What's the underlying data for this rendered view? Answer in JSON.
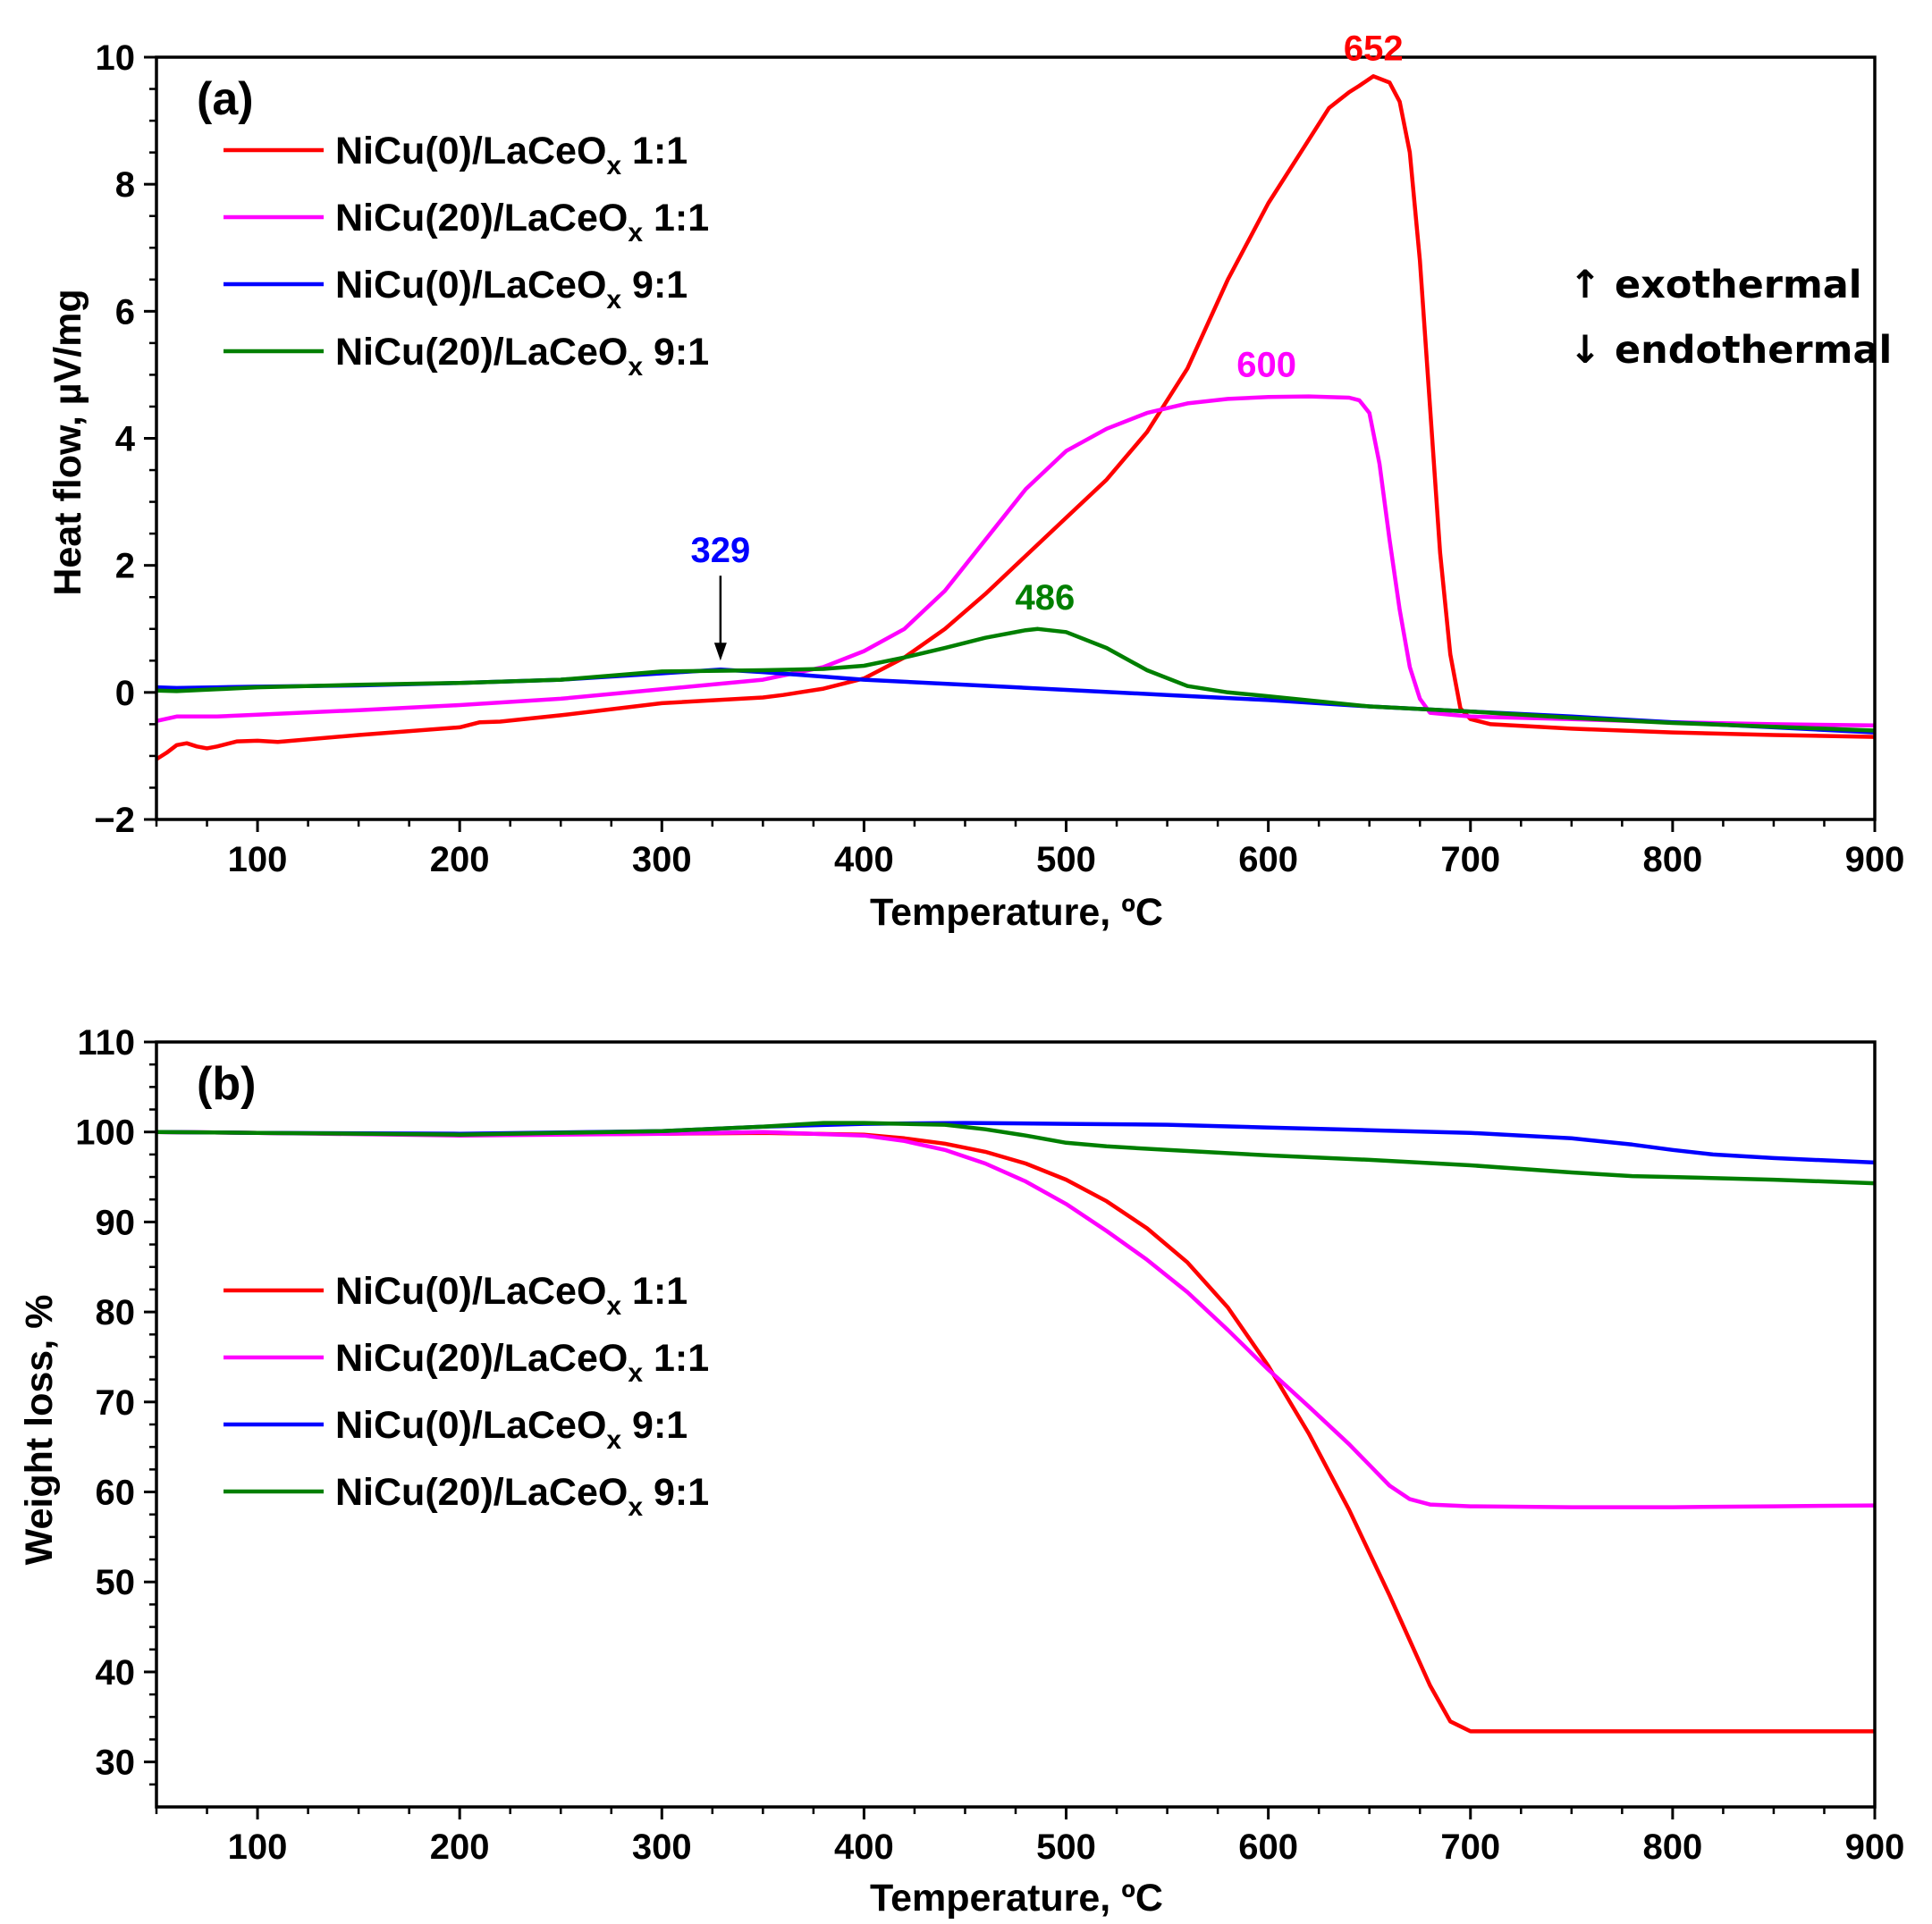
{
  "chart_data": [
    {
      "type": "line",
      "panel_label": "(a)",
      "xlabel": "Temperature, ºC",
      "ylabel": "Heat flow, µV/mg",
      "xlim": [
        50,
        900
      ],
      "ylim": [
        -2,
        10
      ],
      "xticks": [
        100,
        200,
        300,
        400,
        500,
        600,
        700,
        800,
        900
      ],
      "yticks": [
        -2,
        0,
        2,
        4,
        6,
        8,
        10
      ],
      "ytick_labels": [
        "−2",
        "0",
        "2",
        "4",
        "6",
        "8",
        "10"
      ],
      "legend_position": "upper-left",
      "series": [
        {
          "name": "NiCu(0)/LaCeO",
          "sub": "x",
          "suffix": " 1:1",
          "color": "#ff0000",
          "x": [
            50,
            55,
            60,
            65,
            70,
            75,
            80,
            90,
            100,
            110,
            150,
            200,
            210,
            220,
            250,
            300,
            350,
            360,
            380,
            400,
            420,
            440,
            460,
            480,
            500,
            520,
            540,
            560,
            580,
            600,
            620,
            630,
            640,
            645,
            652,
            660,
            665,
            670,
            675,
            680,
            685,
            690,
            695,
            700,
            710,
            750,
            800,
            850,
            900
          ],
          "y": [
            -1.05,
            -0.95,
            -0.83,
            -0.8,
            -0.85,
            -0.88,
            -0.85,
            -0.77,
            -0.76,
            -0.78,
            -0.67,
            -0.55,
            -0.47,
            -0.46,
            -0.36,
            -0.17,
            -0.08,
            -0.04,
            0.06,
            0.22,
            0.55,
            1.0,
            1.55,
            2.15,
            2.75,
            3.35,
            4.1,
            5.1,
            6.5,
            7.7,
            8.7,
            9.2,
            9.45,
            9.55,
            9.7,
            9.6,
            9.3,
            8.5,
            6.8,
            4.5,
            2.2,
            0.6,
            -0.25,
            -0.42,
            -0.5,
            -0.57,
            -0.63,
            -0.67,
            -0.7
          ]
        },
        {
          "name": "NiCu(20)/LaCeO",
          "sub": "x",
          "suffix": " 1:1",
          "color": "#ff00ff",
          "x": [
            50,
            60,
            80,
            100,
            150,
            200,
            250,
            300,
            350,
            380,
            400,
            420,
            440,
            460,
            480,
            500,
            520,
            540,
            560,
            580,
            600,
            620,
            640,
            645,
            650,
            655,
            660,
            665,
            670,
            675,
            680,
            690,
            700,
            750,
            800,
            850,
            900
          ],
          "y": [
            -0.45,
            -0.38,
            -0.38,
            -0.35,
            -0.28,
            -0.2,
            -0.1,
            0.05,
            0.2,
            0.4,
            0.65,
            1.0,
            1.6,
            2.4,
            3.2,
            3.8,
            4.15,
            4.4,
            4.55,
            4.62,
            4.65,
            4.66,
            4.64,
            4.6,
            4.4,
            3.6,
            2.4,
            1.3,
            0.4,
            -0.1,
            -0.32,
            -0.35,
            -0.38,
            -0.42,
            -0.47,
            -0.5,
            -0.52
          ]
        },
        {
          "name": "NiCu(0)/LaCeO",
          "sub": "x",
          "suffix": " 9:1",
          "color": "#0000ff",
          "x": [
            50,
            60,
            80,
            100,
            150,
            200,
            250,
            300,
            329,
            350,
            400,
            450,
            500,
            550,
            600,
            650,
            700,
            750,
            800,
            850,
            900
          ],
          "y": [
            0.08,
            0.07,
            0.08,
            0.09,
            0.11,
            0.15,
            0.2,
            0.3,
            0.36,
            0.32,
            0.2,
            0.12,
            0.04,
            -0.04,
            -0.12,
            -0.22,
            -0.3,
            -0.38,
            -0.47,
            -0.55,
            -0.63
          ]
        },
        {
          "name": "NiCu(20)/LaCeO",
          "sub": "x",
          "suffix": " 9:1",
          "color": "#007f00",
          "x": [
            50,
            60,
            80,
            100,
            150,
            200,
            250,
            300,
            350,
            380,
            400,
            420,
            440,
            460,
            480,
            486,
            500,
            520,
            540,
            560,
            580,
            600,
            650,
            700,
            750,
            800,
            850,
            900
          ],
          "y": [
            0.03,
            0.02,
            0.05,
            0.08,
            0.12,
            0.15,
            0.2,
            0.33,
            0.35,
            0.37,
            0.42,
            0.55,
            0.7,
            0.86,
            0.98,
            1.0,
            0.95,
            0.7,
            0.35,
            0.1,
            0.0,
            -0.06,
            -0.22,
            -0.3,
            -0.4,
            -0.48,
            -0.54,
            -0.6
          ]
        }
      ],
      "annotations": [
        {
          "text": "652",
          "x": 652,
          "y": 9.7,
          "color": "#ff0000"
        },
        {
          "text": "600",
          "x": 600,
          "y": 4.66,
          "color": "#ff00ff"
        },
        {
          "text": "329",
          "x": 329,
          "y": 0.36,
          "color": "#0000ff",
          "arrow": true
        },
        {
          "text": "486",
          "x": 486,
          "y": 1.0,
          "color": "#007f00"
        }
      ],
      "notes": [
        "↑ exothermal",
        "↓ endothermal"
      ]
    },
    {
      "type": "line",
      "panel_label": "(b)",
      "xlabel": "Temperature, ºC",
      "ylabel": "Weight loss, %",
      "xlim": [
        50,
        900
      ],
      "ylim": [
        25,
        110
      ],
      "xticks": [
        100,
        200,
        300,
        400,
        500,
        600,
        700,
        800,
        900
      ],
      "yticks": [
        30,
        40,
        50,
        60,
        70,
        80,
        90,
        100,
        110
      ],
      "ytick_labels": [
        "30",
        "40",
        "50",
        "60",
        "70",
        "80",
        "90",
        "100",
        "110"
      ],
      "legend_position": "middle-left",
      "series": [
        {
          "name": "NiCu(0)/LaCeO",
          "sub": "x",
          "suffix": " 1:1",
          "color": "#ff0000",
          "x": [
            50,
            100,
            200,
            300,
            350,
            400,
            420,
            440,
            460,
            480,
            500,
            520,
            540,
            560,
            580,
            600,
            620,
            640,
            660,
            670,
            680,
            690,
            700,
            750,
            800,
            850,
            900
          ],
          "y": [
            100,
            99.9,
            99.7,
            99.8,
            99.9,
            99.7,
            99.3,
            98.7,
            97.8,
            96.5,
            94.7,
            92.3,
            89.3,
            85.5,
            80.5,
            74,
            66.5,
            58,
            48.5,
            43.5,
            38.5,
            34.5,
            33.4,
            33.4,
            33.4,
            33.4,
            33.4
          ]
        },
        {
          "name": "NiCu(20)/LaCeO",
          "sub": "x",
          "suffix": " 1:1",
          "color": "#ff00ff",
          "x": [
            50,
            100,
            200,
            300,
            350,
            400,
            420,
            440,
            460,
            480,
            500,
            520,
            540,
            560,
            580,
            600,
            620,
            640,
            660,
            670,
            680,
            700,
            750,
            800,
            850,
            900
          ],
          "y": [
            100,
            99.9,
            99.6,
            99.8,
            100,
            99.6,
            99,
            98,
            96.5,
            94.5,
            92,
            89,
            85.8,
            82.2,
            78,
            73.6,
            69.5,
            65.3,
            60.7,
            59.2,
            58.6,
            58.4,
            58.3,
            58.3,
            58.4,
            58.5
          ]
        },
        {
          "name": "NiCu(0)/LaCeO",
          "sub": "x",
          "suffix": " 9:1",
          "color": "#0000ff",
          "x": [
            50,
            100,
            200,
            300,
            350,
            400,
            450,
            500,
            550,
            600,
            650,
            700,
            750,
            780,
            800,
            820,
            850,
            900
          ],
          "y": [
            100,
            99.9,
            99.8,
            100.1,
            100.6,
            100.9,
            101,
            100.9,
            100.8,
            100.5,
            100.2,
            99.9,
            99.3,
            98.6,
            98,
            97.5,
            97.1,
            96.6
          ]
        },
        {
          "name": "NiCu(20)/LaCeO",
          "sub": "x",
          "suffix": " 9:1",
          "color": "#007f00",
          "x": [
            50,
            100,
            200,
            300,
            350,
            380,
            400,
            440,
            460,
            480,
            500,
            520,
            550,
            600,
            650,
            700,
            750,
            780,
            800,
            850,
            900
          ],
          "y": [
            100,
            99.9,
            99.7,
            100.1,
            100.6,
            101,
            101,
            100.8,
            100.3,
            99.6,
            98.8,
            98.4,
            98,
            97.4,
            96.9,
            96.3,
            95.5,
            95.1,
            95,
            94.7,
            94.3
          ]
        }
      ]
    }
  ]
}
